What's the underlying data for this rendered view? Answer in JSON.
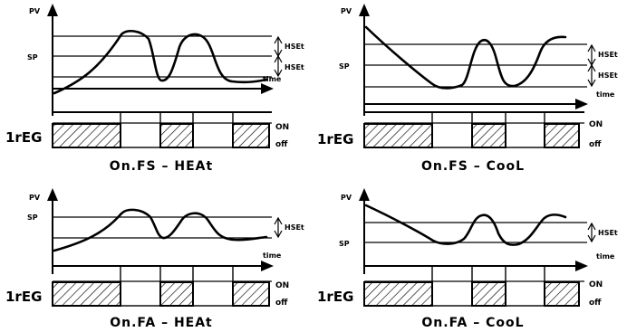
{
  "panels": [
    {
      "id": "fs-heat",
      "pv_label": "PV",
      "sp_label": "SP",
      "hyst_labels": [
        "HSEt",
        "HSEt"
      ],
      "time_label": "time",
      "output_label": "1rEG",
      "on_label": "ON",
      "off_label": "off",
      "caption": "On.FS  –  HEAt"
    },
    {
      "id": "fs-cool",
      "pv_label": "PV",
      "sp_label": "SP",
      "hyst_labels": [
        "HSEt",
        "HSEt"
      ],
      "time_label": "time",
      "output_label": "1rEG",
      "on_label": "ON",
      "off_label": "off",
      "caption": "On.FS  –  CooL"
    },
    {
      "id": "fa-heat",
      "pv_label": "PV",
      "sp_label": "SP",
      "hyst_labels": [
        "HSEt"
      ],
      "time_label": "time",
      "output_label": "1rEG",
      "on_label": "ON",
      "off_label": "off",
      "caption": "On.FA  –  HEAt"
    },
    {
      "id": "fa-cool",
      "pv_label": "PV",
      "sp_label": "SP",
      "hyst_labels": [
        "HSEt"
      ],
      "time_label": "time",
      "output_label": "1rEG",
      "on_label": "ON",
      "off_label": "off",
      "caption": "On.FA  –  CooL"
    }
  ]
}
